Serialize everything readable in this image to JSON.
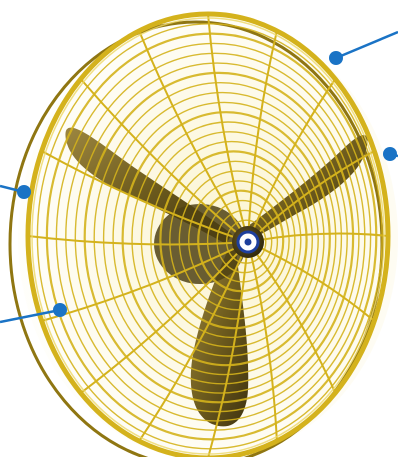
{
  "image": {
    "subject": "industrial-wall-fan",
    "colors": {
      "background": "#ffffff",
      "guard": "#d4b21c",
      "guard_dark": "#8f7612",
      "guard_light": "#ecd765",
      "blade": "#6e5c1e",
      "blade_dark": "#3f3310",
      "blade_light": "#9c8640",
      "hub": "#3d3312",
      "badge": "#ffffff",
      "badge_ring": "#1e3f9c",
      "callout": "#1a73c5"
    },
    "callouts": [
      {
        "id": "guard-top-right",
        "label": ""
      },
      {
        "id": "guard-right",
        "label": ""
      },
      {
        "id": "guard-left",
        "label": ""
      },
      {
        "id": "guard-lower-left",
        "label": ""
      }
    ]
  }
}
